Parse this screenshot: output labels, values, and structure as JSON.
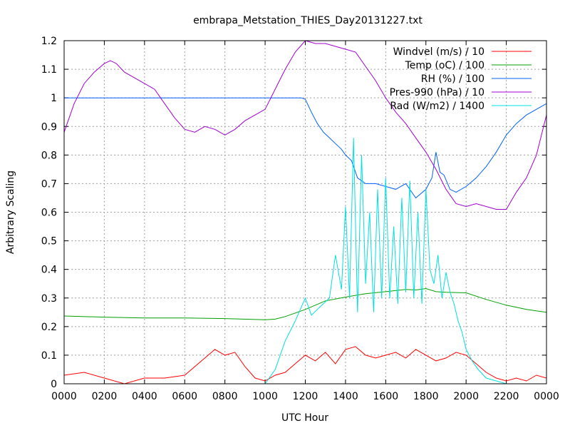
{
  "chart_data": {
    "type": "line",
    "title": "embrapa_Metstation_THIES_Day20131227.txt",
    "xlabel": "UTC Hour",
    "ylabel": "Arbitrary Scaling",
    "xlim": [
      0,
      2400
    ],
    "ylim": [
      0,
      1.2
    ],
    "x_ticks": [
      "0000",
      "0200",
      "0400",
      "0600",
      "0800",
      "1000",
      "1200",
      "1400",
      "1600",
      "1800",
      "2000",
      "2200",
      "0000"
    ],
    "y_ticks": [
      "0",
      "0.1",
      "0.2",
      "0.3",
      "0.4",
      "0.5",
      "0.6",
      "0.7",
      "0.8",
      "0.9",
      "1",
      "1.1",
      "1.2"
    ],
    "grid": true,
    "legend_position": "top-right",
    "series": [
      {
        "name": "Windvel (m/s) / 10",
        "color": "#ff0000",
        "x": [
          0,
          100,
          200,
          300,
          400,
          500,
          600,
          700,
          750,
          800,
          850,
          900,
          950,
          1000,
          1050,
          1100,
          1150,
          1200,
          1250,
          1300,
          1350,
          1400,
          1450,
          1500,
          1550,
          1600,
          1650,
          1700,
          1750,
          1800,
          1850,
          1900,
          1950,
          2000,
          2050,
          2100,
          2150,
          2200,
          2250,
          2300,
          2350,
          2400
        ],
        "y": [
          0.03,
          0.04,
          0.02,
          0.0,
          0.02,
          0.02,
          0.03,
          0.09,
          0.12,
          0.1,
          0.11,
          0.06,
          0.02,
          0.01,
          0.03,
          0.04,
          0.07,
          0.1,
          0.08,
          0.11,
          0.07,
          0.12,
          0.13,
          0.1,
          0.09,
          0.1,
          0.11,
          0.09,
          0.12,
          0.1,
          0.08,
          0.09,
          0.11,
          0.1,
          0.07,
          0.04,
          0.02,
          0.01,
          0.02,
          0.01,
          0.03,
          0.02
        ]
      },
      {
        "name": "Temp (oC) / 100",
        "color": "#00a000",
        "x": [
          0,
          200,
          400,
          600,
          800,
          1000,
          1050,
          1100,
          1200,
          1300,
          1400,
          1500,
          1600,
          1700,
          1750,
          1800,
          1850,
          1900,
          2000,
          2100,
          2200,
          2300,
          2400
        ],
        "y": [
          0.237,
          0.233,
          0.23,
          0.23,
          0.228,
          0.224,
          0.226,
          0.235,
          0.26,
          0.29,
          0.303,
          0.315,
          0.322,
          0.33,
          0.328,
          0.333,
          0.322,
          0.32,
          0.318,
          0.295,
          0.275,
          0.26,
          0.25
        ]
      },
      {
        "name": "RH (%) / 100",
        "color": "#0060ff",
        "x": [
          0,
          600,
          1180,
          1200,
          1230,
          1260,
          1290,
          1320,
          1350,
          1380,
          1400,
          1430,
          1460,
          1500,
          1550,
          1600,
          1650,
          1700,
          1750,
          1800,
          1830,
          1850,
          1870,
          1890,
          1920,
          1950,
          2000,
          2050,
          2100,
          2150,
          2200,
          2250,
          2300,
          2350,
          2400
        ],
        "y": [
          1.0,
          1.0,
          1.0,
          0.995,
          0.95,
          0.91,
          0.88,
          0.86,
          0.84,
          0.82,
          0.8,
          0.78,
          0.72,
          0.7,
          0.7,
          0.69,
          0.68,
          0.7,
          0.65,
          0.68,
          0.72,
          0.81,
          0.74,
          0.73,
          0.68,
          0.67,
          0.69,
          0.72,
          0.76,
          0.81,
          0.87,
          0.91,
          0.94,
          0.96,
          0.98
        ]
      },
      {
        "name": "Pres-990 (hPa) / 10",
        "color": "#a000d0",
        "x": [
          0,
          50,
          100,
          150,
          200,
          230,
          260,
          300,
          350,
          400,
          450,
          500,
          550,
          600,
          650,
          700,
          750,
          800,
          850,
          900,
          950,
          1000,
          1050,
          1100,
          1150,
          1200,
          1250,
          1300,
          1350,
          1400,
          1450,
          1500,
          1550,
          1600,
          1650,
          1700,
          1750,
          1800,
          1850,
          1900,
          1950,
          2000,
          2050,
          2100,
          2150,
          2200,
          2250,
          2300,
          2350,
          2400
        ],
        "y": [
          0.88,
          0.98,
          1.05,
          1.09,
          1.12,
          1.13,
          1.12,
          1.09,
          1.07,
          1.05,
          1.03,
          0.98,
          0.93,
          0.89,
          0.88,
          0.9,
          0.89,
          0.87,
          0.89,
          0.92,
          0.94,
          0.96,
          1.03,
          1.1,
          1.16,
          1.2,
          1.19,
          1.19,
          1.18,
          1.17,
          1.16,
          1.11,
          1.06,
          1.0,
          0.95,
          0.91,
          0.86,
          0.81,
          0.75,
          0.68,
          0.63,
          0.62,
          0.63,
          0.62,
          0.61,
          0.61,
          0.67,
          0.72,
          0.8,
          0.94
        ]
      },
      {
        "name": "Rad (W/m2) / 1400",
        "color": "#00e0e0",
        "x": [
          0,
          1000,
          1050,
          1100,
          1150,
          1200,
          1230,
          1260,
          1290,
          1320,
          1350,
          1380,
          1400,
          1420,
          1440,
          1460,
          1480,
          1500,
          1520,
          1540,
          1560,
          1580,
          1600,
          1620,
          1640,
          1660,
          1680,
          1700,
          1720,
          1740,
          1760,
          1780,
          1800,
          1820,
          1840,
          1860,
          1880,
          1900,
          1920,
          1940,
          1960,
          1980,
          2000,
          2030,
          2060,
          2100,
          2150,
          2200,
          2400
        ],
        "y": [
          0.0,
          0.0,
          0.05,
          0.15,
          0.22,
          0.3,
          0.24,
          0.26,
          0.28,
          0.3,
          0.45,
          0.33,
          0.62,
          0.3,
          0.86,
          0.25,
          0.8,
          0.35,
          0.6,
          0.25,
          0.68,
          0.3,
          0.72,
          0.3,
          0.55,
          0.28,
          0.65,
          0.32,
          0.71,
          0.3,
          0.6,
          0.28,
          0.68,
          0.4,
          0.35,
          0.45,
          0.3,
          0.39,
          0.32,
          0.28,
          0.22,
          0.18,
          0.12,
          0.08,
          0.05,
          0.02,
          0.01,
          0.0,
          0.0
        ]
      }
    ]
  }
}
